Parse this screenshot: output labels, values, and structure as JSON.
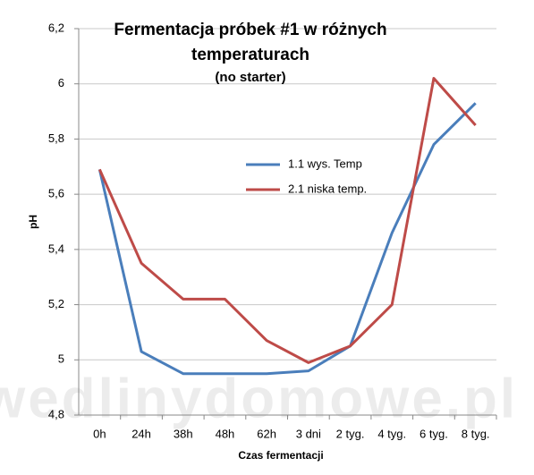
{
  "chart_data": {
    "type": "line",
    "title": "Fermentacja próbek #1 w różnych temperaturach",
    "subtitle": "(no starter)",
    "x_label": "Czas fermentacji",
    "y_label": "pH",
    "watermark": "wedlinydomowe.pl",
    "categories": [
      "0h",
      "24h",
      "38h",
      "48h",
      "62h",
      "3 dni",
      "2 tyg.",
      "4 tyg.",
      "6 tyg.",
      "8 tyg."
    ],
    "series": [
      {
        "name": "1.1 wys. Temp",
        "color": "#4a7ebb",
        "values": [
          5.69,
          5.03,
          4.95,
          4.95,
          4.95,
          4.96,
          5.05,
          5.46,
          5.78,
          5.93
        ]
      },
      {
        "name": "2.1 niska temp.",
        "color": "#be4b48",
        "values": [
          5.69,
          5.35,
          5.22,
          5.22,
          5.07,
          4.99,
          5.05,
          5.2,
          6.02,
          5.85
        ]
      }
    ],
    "ylim": [
      4.8,
      6.2
    ],
    "yticks": [
      {
        "value": 4.8,
        "label": "4,8"
      },
      5,
      {
        "value": 5.2,
        "label": "5,2"
      },
      {
        "value": 5.4,
        "label": "5,4"
      },
      {
        "value": 5.6,
        "label": "5,6"
      },
      {
        "value": 5.8,
        "label": "5,8"
      },
      6,
      {
        "value": 6.2,
        "label": "6,2"
      }
    ],
    "grid": true
  }
}
